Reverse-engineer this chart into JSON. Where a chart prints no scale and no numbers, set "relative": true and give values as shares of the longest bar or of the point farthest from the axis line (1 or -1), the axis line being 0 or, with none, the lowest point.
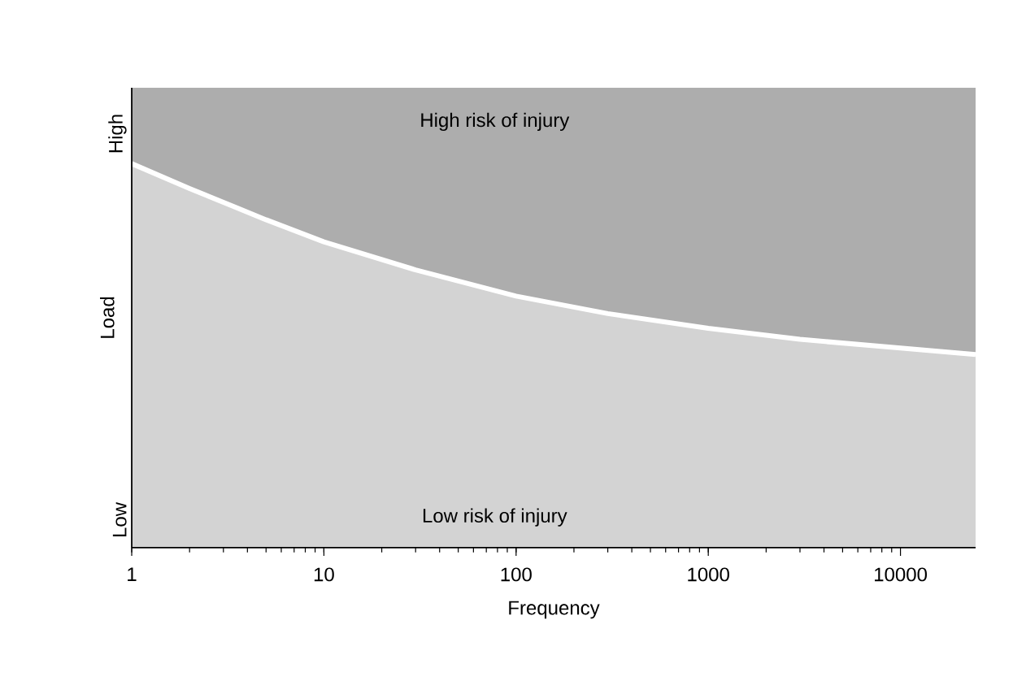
{
  "chart_data": {
    "type": "area",
    "stacked": true,
    "xlabel": "Frequency",
    "ylabel": "Load",
    "log": "x",
    "relative": true,
    "x": [
      1,
      2,
      5,
      10,
      30,
      100,
      300,
      1000,
      3000,
      10000,
      24600
    ],
    "xlim": [
      1,
      24600
    ],
    "xticks": [
      1,
      10,
      100,
      1000,
      10000
    ],
    "series": [
      {
        "color": "#d3d3d3",
        "values": [
          0.835,
          0.781,
          0.713,
          0.665,
          0.604,
          0.547,
          0.509,
          0.477,
          0.453,
          0.434,
          0.42
        ]
      },
      {
        "color": "#adadad",
        "values": [
          0.165,
          0.219,
          0.287,
          0.335,
          0.396,
          0.453,
          0.491,
          0.523,
          0.547,
          0.566,
          0.58
        ]
      }
    ],
    "annotations": [
      "High risk of injury",
      "Low risk of injury",
      "Low",
      "High"
    ]
  }
}
